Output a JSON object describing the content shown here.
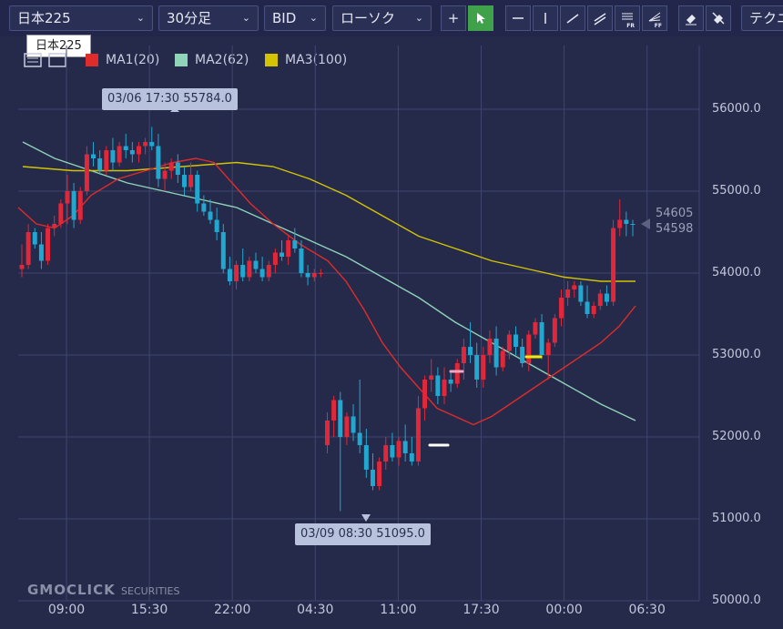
{
  "toolbar": {
    "symbol": "日本225",
    "interval": "30分足",
    "price_type": "BID",
    "chart_style": "ローソク",
    "tech_label": "テクニ"
  },
  "tooltip": "日本225",
  "legend": [
    {
      "label": "MA1(20)",
      "color": "#e02b2b"
    },
    {
      "label": "MA2(62)",
      "color": "#8fd3b8"
    },
    {
      "label": "MA3(100)",
      "color": "#d4c400"
    }
  ],
  "callouts": {
    "high": "03/06 17:30 55784.0",
    "low": "03/09 08:30 51095.0"
  },
  "price_labels": {
    "upper": "54605",
    "lower": "54598"
  },
  "logo": {
    "main": "GMOCLICK",
    "sub": "SECURITIES"
  },
  "chart_data": {
    "type": "candlestick",
    "y_ticks": [
      "56000.0",
      "55000.0",
      "54000.0",
      "53000.0",
      "52000.0",
      "51000.0",
      "50000.0"
    ],
    "x_ticks": [
      "09:00",
      "15:30",
      "22:00",
      "04:30",
      "11:00",
      "17:30",
      "00:00",
      "06:30"
    ],
    "ylim": [
      50000,
      56700
    ],
    "colors": {
      "up": "#e0283a",
      "down": "#22a7d0"
    },
    "ohlc": [
      [
        54050,
        54350,
        53950,
        54100
      ],
      [
        54100,
        54600,
        54050,
        54500
      ],
      [
        54500,
        54550,
        54300,
        54350
      ],
      [
        54350,
        54500,
        54050,
        54150
      ],
      [
        54150,
        54600,
        54100,
        54550
      ],
      [
        54550,
        54700,
        54450,
        54600
      ],
      [
        54600,
        54900,
        54550,
        54850
      ],
      [
        54850,
        55200,
        54600,
        55000
      ],
      [
        55000,
        55100,
        54550,
        54650
      ],
      [
        54650,
        55050,
        54600,
        55000
      ],
      [
        55000,
        55550,
        54950,
        55450
      ],
      [
        55450,
        55600,
        55300,
        55400
      ],
      [
        55400,
        55500,
        55200,
        55250
      ],
      [
        55250,
        55550,
        55200,
        55500
      ],
      [
        55500,
        55650,
        55250,
        55350
      ],
      [
        55350,
        55600,
        55300,
        55550
      ],
      [
        55550,
        55700,
        55400,
        55500
      ],
      [
        55500,
        55600,
        55350,
        55450
      ],
      [
        55450,
        55600,
        55350,
        55550
      ],
      [
        55550,
        55650,
        55450,
        55600
      ],
      [
        55600,
        55784,
        55500,
        55550
      ],
      [
        55550,
        55700,
        55050,
        55150
      ],
      [
        55150,
        55350,
        55000,
        55250
      ],
      [
        55250,
        55400,
        55150,
        55350
      ],
      [
        55350,
        55450,
        55100,
        55200
      ],
      [
        55200,
        55300,
        54950,
        55050
      ],
      [
        55050,
        55350,
        55000,
        55200
      ],
      [
        55200,
        55250,
        54750,
        54850
      ],
      [
        54850,
        54950,
        54700,
        54750
      ],
      [
        54750,
        54900,
        54600,
        54650
      ],
      [
        54650,
        54800,
        54400,
        54500
      ],
      [
        54500,
        54600,
        54000,
        54050
      ],
      [
        54050,
        54200,
        53850,
        53900
      ],
      [
        53900,
        54150,
        53800,
        54100
      ],
      [
        54100,
        54300,
        53900,
        53950
      ],
      [
        53950,
        54200,
        53900,
        54150
      ],
      [
        54150,
        54250,
        54000,
        54050
      ],
      [
        54050,
        54200,
        53900,
        53950
      ],
      [
        53950,
        54150,
        53900,
        54100
      ],
      [
        54100,
        54300,
        54000,
        54250
      ],
      [
        54250,
        54400,
        54150,
        54200
      ],
      [
        54200,
        54450,
        54100,
        54400
      ],
      [
        54400,
        54550,
        54250,
        54300
      ],
      [
        54300,
        54400,
        53950,
        54000
      ],
      [
        54000,
        54100,
        53850,
        53950
      ],
      [
        53950,
        54050,
        53900,
        54000
      ],
      [
        54000,
        54050,
        53950,
        54000
      ],
      [
        51900,
        52300,
        51800,
        52200
      ],
      [
        52200,
        52500,
        52000,
        52450
      ],
      [
        52450,
        52550,
        51095,
        52000
      ],
      [
        52000,
        52300,
        51900,
        52250
      ],
      [
        52250,
        52400,
        51950,
        52050
      ],
      [
        52050,
        52700,
        51800,
        51900
      ],
      [
        51900,
        52100,
        51500,
        51600
      ],
      [
        51600,
        51800,
        51350,
        51400
      ],
      [
        51400,
        51750,
        51350,
        51700
      ],
      [
        51700,
        52000,
        51600,
        51900
      ],
      [
        51900,
        52050,
        51700,
        51750
      ],
      [
        51750,
        52000,
        51650,
        51950
      ],
      [
        51950,
        52150,
        51700,
        51800
      ],
      [
        51800,
        52000,
        51650,
        51700
      ],
      [
        51700,
        52500,
        51650,
        52350
      ],
      [
        52350,
        52750,
        52200,
        52700
      ],
      [
        52700,
        52950,
        52550,
        52750
      ],
      [
        52750,
        52850,
        52400,
        52500
      ],
      [
        52500,
        52850,
        52400,
        52700
      ],
      [
        52700,
        52800,
        52550,
        52650
      ],
      [
        52650,
        52950,
        52600,
        52900
      ],
      [
        52900,
        53200,
        52700,
        53100
      ],
      [
        53100,
        53400,
        52900,
        53000
      ],
      [
        53000,
        53150,
        52600,
        52700
      ],
      [
        52700,
        53100,
        52600,
        53000
      ],
      [
        53000,
        53300,
        52900,
        53200
      ],
      [
        53200,
        53350,
        52750,
        52850
      ],
      [
        52850,
        53100,
        52800,
        53050
      ],
      [
        53050,
        53300,
        52950,
        53250
      ],
      [
        53250,
        53350,
        53000,
        53100
      ],
      [
        53100,
        53200,
        52850,
        52900
      ],
      [
        52900,
        53300,
        52800,
        53250
      ],
      [
        53250,
        53450,
        53200,
        53400
      ],
      [
        53400,
        53500,
        52950,
        53000
      ],
      [
        53000,
        53200,
        52700,
        53150
      ],
      [
        53150,
        53500,
        53100,
        53450
      ],
      [
        53450,
        53800,
        53350,
        53700
      ],
      [
        53700,
        53900,
        53600,
        53800
      ],
      [
        53800,
        53900,
        53700,
        53850
      ],
      [
        53850,
        53900,
        53600,
        53650
      ],
      [
        53650,
        53850,
        53450,
        53500
      ],
      [
        53500,
        53650,
        53450,
        53600
      ],
      [
        53600,
        53800,
        53550,
        53750
      ],
      [
        53750,
        53850,
        53600,
        53650
      ],
      [
        53650,
        54650,
        53600,
        54550
      ],
      [
        54550,
        54900,
        54450,
        54650
      ],
      [
        54650,
        54750,
        54450,
        54600
      ],
      [
        54600,
        54650,
        54450,
        54598
      ]
    ],
    "ma1": [
      [
        20,
        54800
      ],
      [
        40,
        54600
      ],
      [
        60,
        54550
      ],
      [
        80,
        54700
      ],
      [
        100,
        54950
      ],
      [
        130,
        55150
      ],
      [
        160,
        55250
      ],
      [
        190,
        55350
      ],
      [
        215,
        55400
      ],
      [
        235,
        55350
      ],
      [
        255,
        55100
      ],
      [
        275,
        54850
      ],
      [
        300,
        54600
      ],
      [
        330,
        54350
      ],
      [
        360,
        54150
      ],
      [
        380,
        53900
      ],
      [
        400,
        53550
      ],
      [
        420,
        53150
      ],
      [
        440,
        52850
      ],
      [
        460,
        52600
      ],
      [
        480,
        52350
      ],
      [
        500,
        52250
      ],
      [
        520,
        52150
      ],
      [
        540,
        52250
      ],
      [
        560,
        52400
      ],
      [
        580,
        52550
      ],
      [
        600,
        52700
      ],
      [
        620,
        52850
      ],
      [
        640,
        53000
      ],
      [
        660,
        53150
      ],
      [
        680,
        53350
      ],
      [
        698,
        53600
      ]
    ],
    "ma2": [
      [
        25,
        55600
      ],
      [
        60,
        55400
      ],
      [
        100,
        55250
      ],
      [
        140,
        55100
      ],
      [
        180,
        55000
      ],
      [
        220,
        54900
      ],
      [
        260,
        54800
      ],
      [
        300,
        54600
      ],
      [
        340,
        54400
      ],
      [
        380,
        54200
      ],
      [
        420,
        53950
      ],
      [
        460,
        53700
      ],
      [
        500,
        53400
      ],
      [
        540,
        53150
      ],
      [
        580,
        52900
      ],
      [
        620,
        52650
      ],
      [
        660,
        52400
      ],
      [
        698,
        52200
      ]
    ],
    "ma3": [
      [
        25,
        55300
      ],
      [
        80,
        55250
      ],
      [
        140,
        55250
      ],
      [
        200,
        55300
      ],
      [
        260,
        55350
      ],
      [
        300,
        55300
      ],
      [
        340,
        55150
      ],
      [
        380,
        54950
      ],
      [
        420,
        54700
      ],
      [
        460,
        54450
      ],
      [
        500,
        54300
      ],
      [
        540,
        54150
      ],
      [
        580,
        54050
      ],
      [
        620,
        53950
      ],
      [
        660,
        53900
      ],
      [
        698,
        53900
      ]
    ]
  }
}
